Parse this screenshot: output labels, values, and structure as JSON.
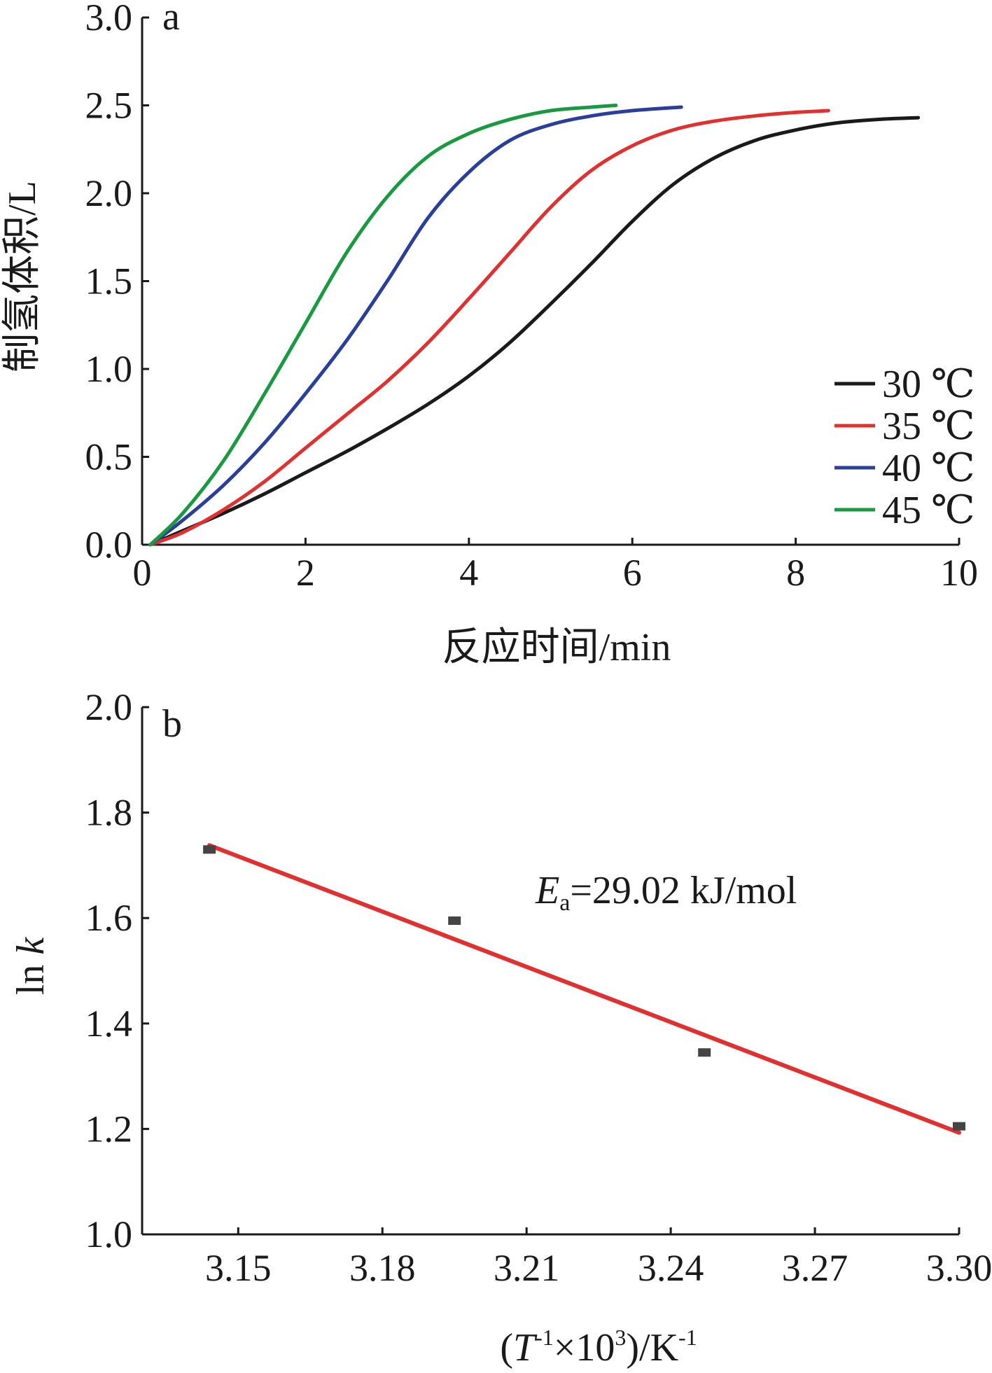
{
  "chart_data": [
    {
      "panel": "a",
      "type": "line",
      "xlabel": "反应时间/min",
      "ylabel": "制氢体积/L",
      "xlim": [
        0,
        10
      ],
      "ylim": [
        0,
        3.0
      ],
      "xticks": [
        "0",
        "2",
        "4",
        "6",
        "8",
        "10"
      ],
      "yticks": [
        "0.0",
        "0.5",
        "1.0",
        "1.5",
        "2.0",
        "2.5",
        "3.0"
      ],
      "legend_position": "right",
      "series": [
        {
          "name": "30 ℃",
          "color": "#1a1a1a",
          "x": [
            0.1,
            0.5,
            1.0,
            1.5,
            2.0,
            2.5,
            3.0,
            3.5,
            4.0,
            4.5,
            5.0,
            5.5,
            6.0,
            6.5,
            7.0,
            7.5,
            8.0,
            8.5,
            9.0,
            9.5
          ],
          "y": [
            0.0,
            0.08,
            0.18,
            0.29,
            0.41,
            0.53,
            0.66,
            0.8,
            0.96,
            1.15,
            1.37,
            1.6,
            1.84,
            2.05,
            2.2,
            2.3,
            2.36,
            2.4,
            2.42,
            2.43
          ]
        },
        {
          "name": "35 ℃",
          "color": "#e03030",
          "x": [
            0.1,
            0.5,
            1.0,
            1.5,
            2.0,
            2.5,
            3.0,
            3.5,
            4.0,
            4.5,
            5.0,
            5.5,
            6.0,
            6.5,
            7.0,
            7.5,
            8.0,
            8.4
          ],
          "y": [
            0.0,
            0.07,
            0.2,
            0.36,
            0.55,
            0.74,
            0.93,
            1.15,
            1.4,
            1.66,
            1.92,
            2.13,
            2.27,
            2.36,
            2.41,
            2.44,
            2.46,
            2.47
          ]
        },
        {
          "name": "40 ℃",
          "color": "#2a3f9a",
          "x": [
            0.1,
            0.5,
            1.0,
            1.5,
            2.0,
            2.5,
            3.0,
            3.5,
            4.0,
            4.5,
            5.0,
            5.5,
            6.0,
            6.6
          ],
          "y": [
            0.0,
            0.14,
            0.34,
            0.58,
            0.86,
            1.16,
            1.5,
            1.86,
            2.12,
            2.3,
            2.39,
            2.44,
            2.47,
            2.49
          ]
        },
        {
          "name": "45 ℃",
          "color": "#1a9a40",
          "x": [
            0.1,
            0.5,
            1.0,
            1.5,
            2.0,
            2.5,
            3.0,
            3.5,
            4.0,
            4.5,
            5.0,
            5.5,
            5.8
          ],
          "y": [
            0.0,
            0.18,
            0.48,
            0.86,
            1.26,
            1.66,
            1.98,
            2.21,
            2.34,
            2.42,
            2.47,
            2.49,
            2.5
          ]
        }
      ]
    },
    {
      "panel": "b",
      "type": "scatter",
      "xlabel_parts": {
        "pre": "(",
        "t": "T",
        "sup1": "-1",
        "mid": "×10",
        "sup2": "3",
        "post": ")/K",
        "sup3": "-1"
      },
      "ylabel_parts": {
        "ln": "ln ",
        "k": "k"
      },
      "xlim": [
        3.13,
        3.3
      ],
      "ylim": [
        1.0,
        2.0
      ],
      "xticks": [
        "3.15",
        "3.18",
        "3.21",
        "3.24",
        "3.27",
        "3.30"
      ],
      "yticks": [
        "1.0",
        "1.2",
        "1.4",
        "1.6",
        "1.8",
        "2.0"
      ],
      "points": {
        "color": "#444444",
        "x": [
          3.144,
          3.195,
          3.247,
          3.3
        ],
        "y": [
          1.73,
          1.595,
          1.345,
          1.205
        ]
      },
      "fit_line": {
        "color": "#e03030",
        "x": [
          3.144,
          3.3
        ],
        "y": [
          1.738,
          1.193
        ]
      },
      "annotation": {
        "e": "E",
        "sub": "a",
        "rest": "=29.02 kJ/mol"
      }
    }
  ]
}
